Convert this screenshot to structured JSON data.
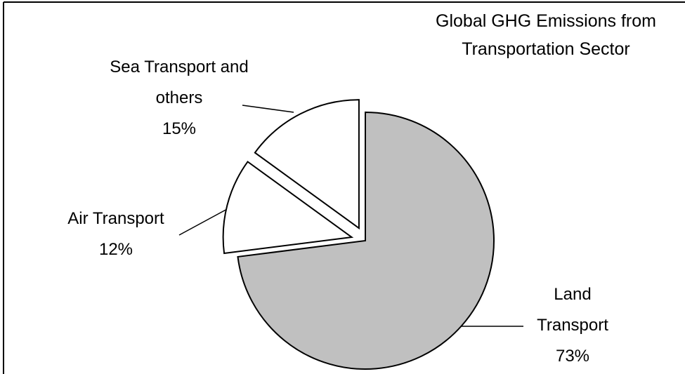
{
  "chart_data": {
    "type": "pie",
    "title": "Global GHG Emissions from Transportation Sector",
    "categories": [
      "Land Transport",
      "Air Transport",
      "Sea Transport and others"
    ],
    "values": [
      73,
      12,
      15
    ],
    "value_labels": [
      "73%",
      "12%",
      "15%"
    ],
    "colors": [
      "#c0c0c0",
      "#ffffff",
      "#ffffff"
    ]
  }
}
